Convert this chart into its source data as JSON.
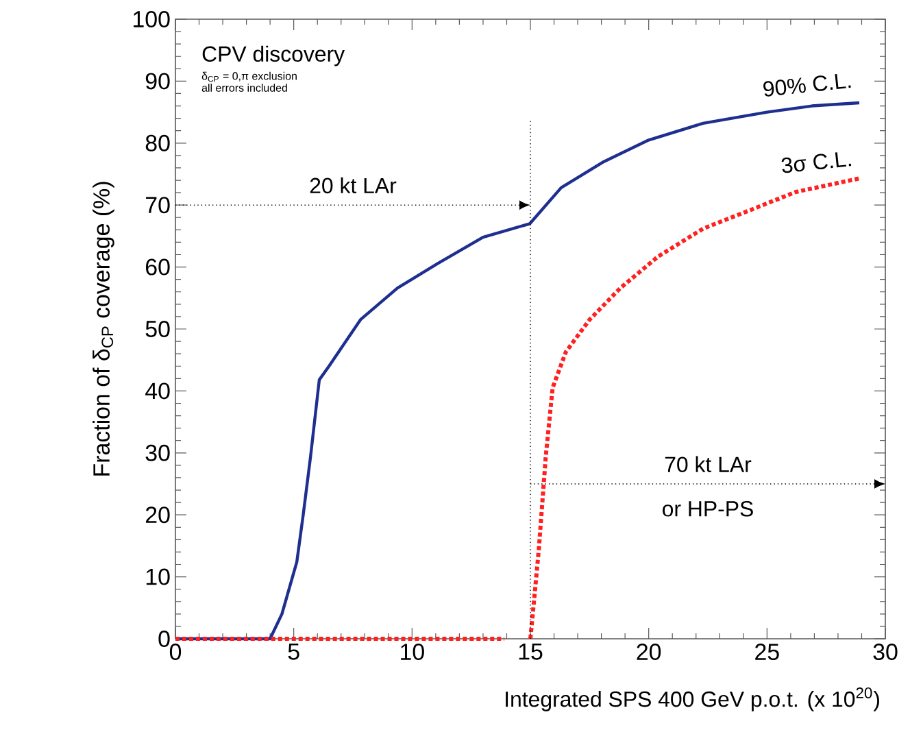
{
  "chart_data": {
    "type": "line",
    "xlabel": "Integrated SPS 400 GeV p.o.t. (x 10$^{20}$)",
    "ylabel": "Fraction of δ$_{CP}$ coverage (%)",
    "xlim": [
      0,
      30
    ],
    "ylim": [
      0,
      100
    ],
    "xticks": [
      0,
      5,
      10,
      15,
      20,
      25,
      30
    ],
    "yticks": [
      0,
      10,
      20,
      30,
      40,
      50,
      60,
      70,
      80,
      90,
      100
    ],
    "grid": false,
    "legend": false,
    "marker": "none",
    "series": [
      {
        "name": "90% C.L.",
        "color": "#1f2f8f",
        "line_style": "solid",
        "x": [
          0,
          4.0,
          4.5,
          5.13,
          5.4,
          5.71,
          6.08,
          6.49,
          7.82,
          9.38,
          11.1,
          13.0,
          14.98,
          16.3,
          18.1,
          20,
          22.3,
          25,
          26.9,
          28.9
        ],
        "values": [
          0,
          0,
          4,
          12.4,
          20,
          29.4,
          41.8,
          44,
          51.5,
          56.6,
          60.6,
          64.8,
          67,
          72.8,
          77,
          80.5,
          83.2,
          85,
          86,
          86.5
        ]
      },
      {
        "name": "3σ C.L.",
        "color": "#ff2020",
        "line_style": "dotted",
        "x": [
          0,
          13.9,
          14.5,
          15.0,
          15.2,
          15.36,
          15.65,
          15.94,
          16.5,
          17.5,
          18.8,
          20.4,
          22.3,
          24.3,
          26.2,
          28.9
        ],
        "values": [
          0,
          0,
          null,
          0,
          8,
          14.6,
          29.4,
          40.5,
          46.3,
          51.5,
          56.6,
          61.7,
          66.2,
          69.2,
          72.1,
          74.3
        ]
      }
    ],
    "ref_lines": [
      {
        "axis": "x",
        "value": 15,
        "line_style": "dotted",
        "color": "#000000"
      },
      {
        "axis": "y",
        "value": 70,
        "label": "20 kt LAr",
        "line_style": "dotted",
        "color": "#000000"
      },
      {
        "axis": "y",
        "value": 25,
        "label": "70 kt LAr",
        "line_style": "dotted",
        "color": "#000000"
      }
    ],
    "annotations": [
      "CPV discovery",
      "δ$_{CP}$ = 0,π exclusion",
      "all errors included",
      "or HP-PS"
    ]
  }
}
